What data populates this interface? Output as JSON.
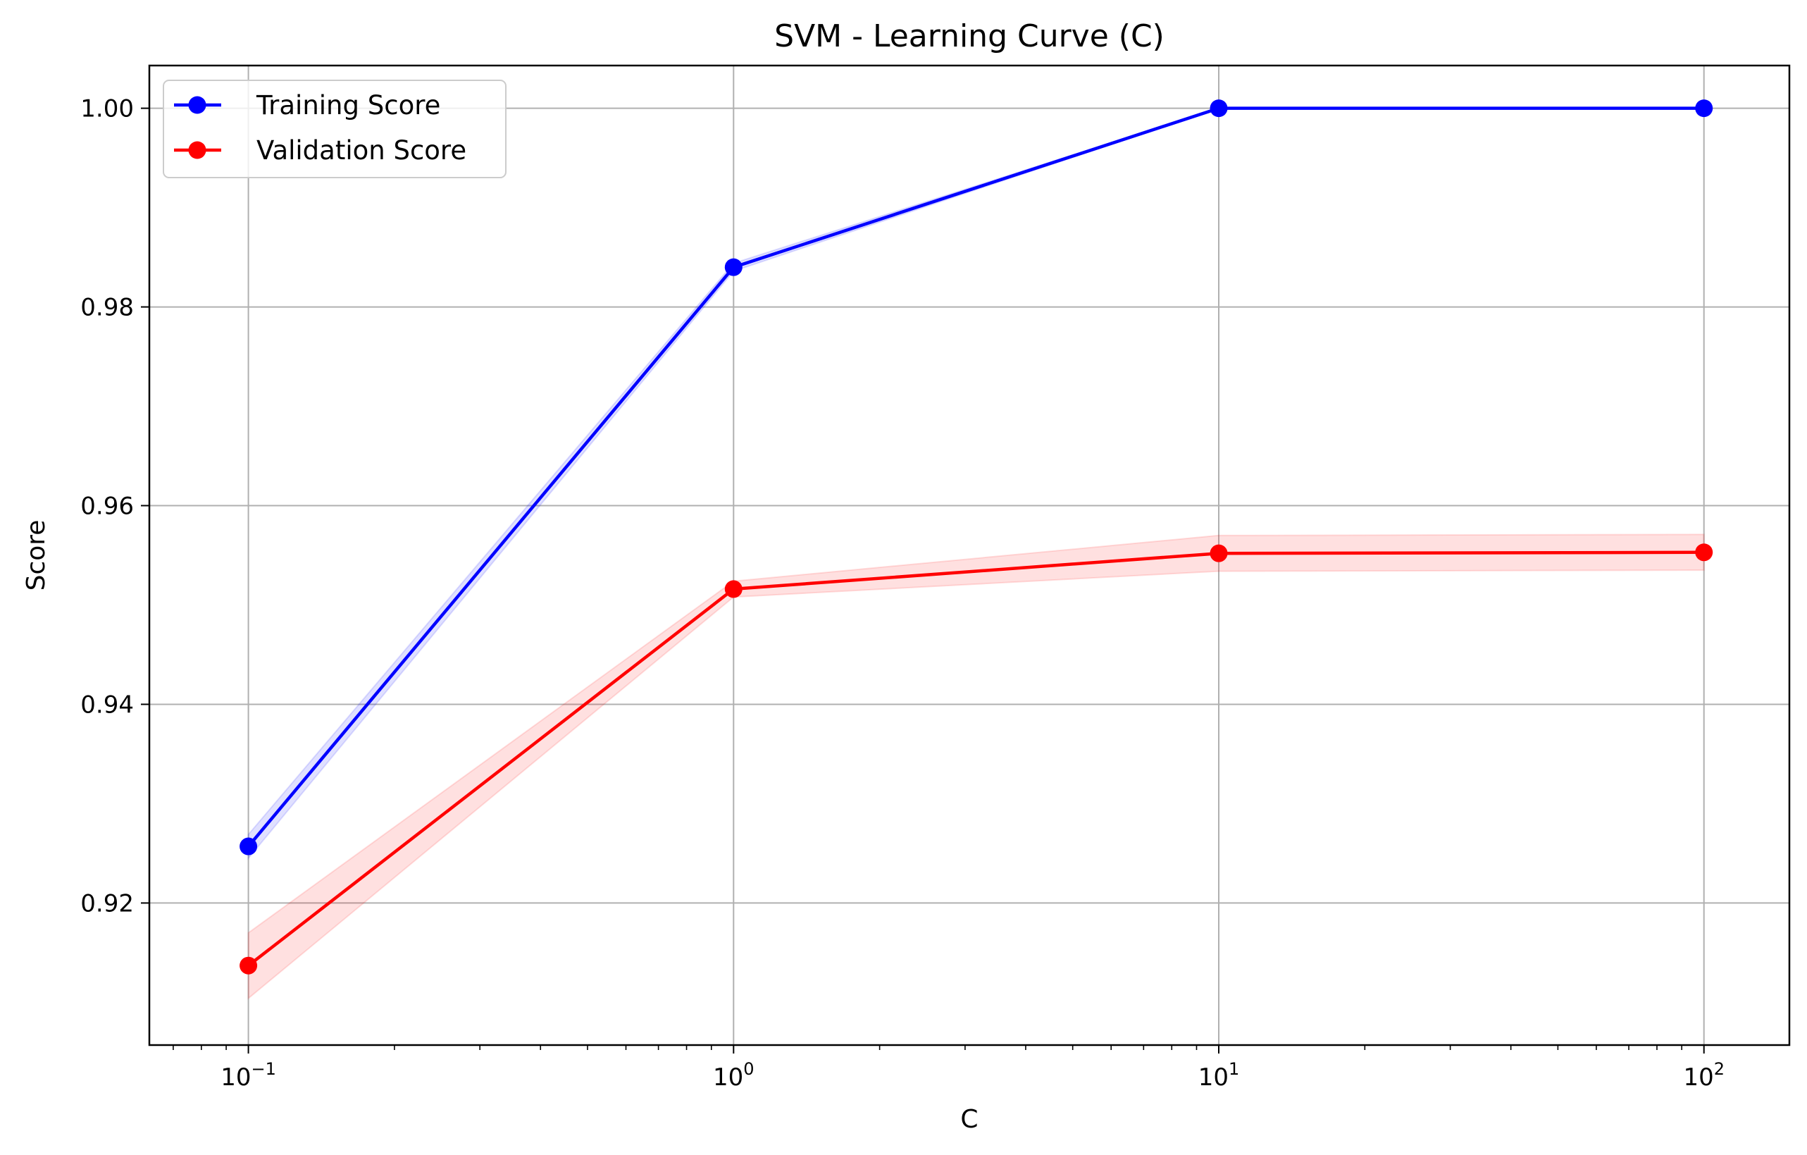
{
  "chart_data": {
    "type": "line",
    "title": "SVM - Learning Curve (C)",
    "xlabel": "C",
    "ylabel": "Score",
    "xscale": "log",
    "x": [
      0.1,
      1,
      10,
      100
    ],
    "xlim": [
      0.0625,
      150
    ],
    "ylim": [
      0.9057,
      1.0043
    ],
    "x_ticks": [
      {
        "value": 0.1,
        "base": "10",
        "exp": "−1"
      },
      {
        "value": 1,
        "base": "10",
        "exp": "0"
      },
      {
        "value": 10,
        "base": "10",
        "exp": "1"
      },
      {
        "value": 100,
        "base": "10",
        "exp": "2"
      }
    ],
    "y_ticks": [
      {
        "value": 0.92,
        "label": "0.92"
      },
      {
        "value": 0.94,
        "label": "0.94"
      },
      {
        "value": 0.96,
        "label": "0.96"
      },
      {
        "value": 0.98,
        "label": "0.98"
      },
      {
        "value": 1.0,
        "label": "1.00"
      }
    ],
    "grid": true,
    "legend_position": "top-left",
    "series": [
      {
        "name": "Training Score",
        "color": "#0000ff",
        "band_color": "#0000ff",
        "values": [
          0.9257,
          0.984,
          1.0,
          1.0
        ],
        "std": [
          0.0012,
          0.0004,
          0.0,
          0.0
        ]
      },
      {
        "name": "Validation Score",
        "color": "#ff0000",
        "band_color": "#ff0000",
        "values": [
          0.9137,
          0.9516,
          0.9552,
          0.9553
        ],
        "std": [
          0.0033,
          0.0008,
          0.0018,
          0.0018
        ]
      }
    ]
  }
}
